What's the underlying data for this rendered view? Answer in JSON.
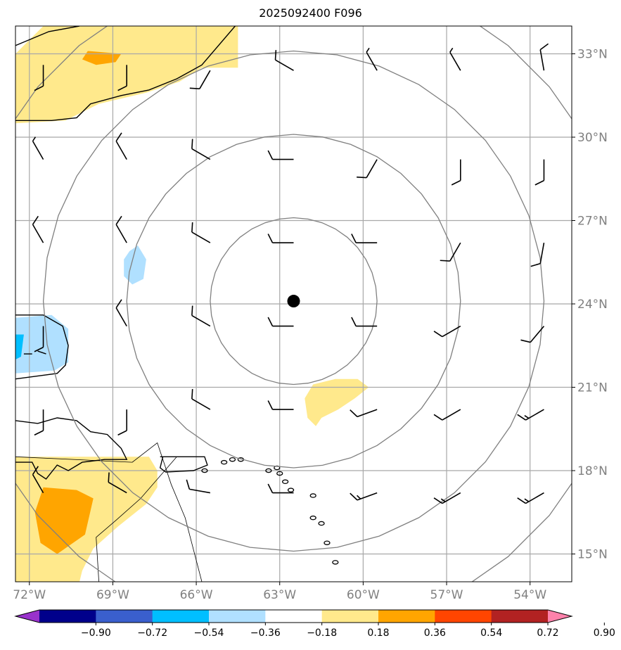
{
  "title": "2025092400 F096",
  "extent": {
    "lon_min": -72.5,
    "lon_max": -52.5,
    "lat_min": 14.0,
    "lat_max": 34.0
  },
  "lon_ticks": [
    {
      "value": -72,
      "label": "72°W"
    },
    {
      "value": -69,
      "label": "69°W"
    },
    {
      "value": -66,
      "label": "66°W"
    },
    {
      "value": -63,
      "label": "63°W"
    },
    {
      "value": -60,
      "label": "60°W"
    },
    {
      "value": -57,
      "label": "57°W"
    },
    {
      "value": -54,
      "label": "54°W"
    }
  ],
  "lat_ticks": [
    {
      "value": 33,
      "label": "33°N"
    },
    {
      "value": 30,
      "label": "30°N"
    },
    {
      "value": 27,
      "label": "27°N"
    },
    {
      "value": 24,
      "label": "24°N"
    },
    {
      "value": 21,
      "label": "21°N"
    },
    {
      "value": 18,
      "label": "18°N"
    },
    {
      "value": 15,
      "label": "15°N"
    }
  ],
  "center": {
    "lon": -62.5,
    "lat": 24.1
  },
  "rings_deg": [
    3,
    6,
    9,
    12
  ],
  "colorbar": {
    "colors": [
      "#9932cc",
      "#00008b",
      "#3a5fcd",
      "#00bfff",
      "#b0e0ff",
      "#ffffff",
      "#ffe98c",
      "#ffa500",
      "#ff4500",
      "#b22222",
      "#ff82ab"
    ],
    "labels": [
      "−0.90",
      "−0.72",
      "−0.54",
      "−0.36",
      "−0.18",
      "0.18",
      "0.36",
      "0.54",
      "0.72",
      "0.90"
    ]
  },
  "anomaly_patches": [
    {
      "color": "#ffe98c",
      "points": [
        [
          -72.5,
          33.0
        ],
        [
          -71.5,
          34.0
        ],
        [
          -64.5,
          34.0
        ],
        [
          -64.5,
          32.5
        ],
        [
          -65.8,
          32.5
        ],
        [
          -66.6,
          32.0
        ],
        [
          -67.8,
          31.6
        ],
        [
          -69.5,
          31.2
        ],
        [
          -70.7,
          30.6
        ],
        [
          -72.5,
          30.5
        ]
      ]
    },
    {
      "color": "#ffa500",
      "points": [
        [
          -69.9,
          33.1
        ],
        [
          -68.7,
          33.0
        ],
        [
          -68.9,
          32.7
        ],
        [
          -69.6,
          32.6
        ],
        [
          -70.1,
          32.8
        ]
      ]
    },
    {
      "color": "#b0e0ff",
      "points": [
        [
          -72.5,
          23.5
        ],
        [
          -71.2,
          23.6
        ],
        [
          -70.6,
          23.1
        ],
        [
          -70.6,
          21.9
        ],
        [
          -71.1,
          21.6
        ],
        [
          -72.5,
          21.5
        ]
      ]
    },
    {
      "color": "#00bfff",
      "points": [
        [
          -72.5,
          22.9
        ],
        [
          -72.2,
          22.9
        ],
        [
          -72.3,
          22.1
        ],
        [
          -72.5,
          22.0
        ]
      ]
    },
    {
      "color": "#b0e0ff",
      "points": [
        [
          -68.4,
          25.9
        ],
        [
          -68.1,
          26.1
        ],
        [
          -67.8,
          25.6
        ],
        [
          -67.9,
          24.9
        ],
        [
          -68.3,
          24.7
        ],
        [
          -68.6,
          25.0
        ],
        [
          -68.6,
          25.6
        ]
      ]
    },
    {
      "color": "#ffe98c",
      "points": [
        [
          -61.0,
          21.3
        ],
        [
          -60.2,
          21.3
        ],
        [
          -59.8,
          21.0
        ],
        [
          -60.3,
          20.6
        ],
        [
          -60.9,
          20.2
        ],
        [
          -61.5,
          19.9
        ],
        [
          -61.7,
          19.6
        ],
        [
          -62.0,
          19.9
        ],
        [
          -62.1,
          20.6
        ],
        [
          -61.8,
          21.1
        ]
      ]
    },
    {
      "color": "#ffe98c",
      "points": [
        [
          -72.5,
          18.5
        ],
        [
          -67.7,
          18.5
        ],
        [
          -67.4,
          18.0
        ],
        [
          -67.4,
          17.4
        ],
        [
          -67.8,
          16.8
        ],
        [
          -68.8,
          16.0
        ],
        [
          -69.7,
          15.2
        ],
        [
          -70.1,
          14.4
        ],
        [
          -70.2,
          14.0
        ],
        [
          -72.5,
          14.0
        ]
      ]
    },
    {
      "color": "#ffa500",
      "points": [
        [
          -71.5,
          17.4
        ],
        [
          -70.3,
          17.3
        ],
        [
          -69.7,
          17.0
        ],
        [
          -70.0,
          15.7
        ],
        [
          -71.0,
          15.0
        ],
        [
          -71.6,
          15.4
        ],
        [
          -71.8,
          16.5
        ]
      ]
    }
  ],
  "coastlines": [
    [
      [
        -72.5,
        23.6
      ],
      [
        -71.5,
        23.6
      ],
      [
        -70.8,
        23.2
      ],
      [
        -70.6,
        22.5
      ],
      [
        -70.7,
        21.8
      ],
      [
        -71.0,
        21.5
      ],
      [
        -72.5,
        21.3
      ]
    ],
    [
      [
        -72.5,
        33.3
      ],
      [
        -71.3,
        33.8
      ],
      [
        -70.2,
        34.0
      ]
    ],
    [
      [
        -72.5,
        30.6
      ],
      [
        -71.2,
        30.6
      ],
      [
        -70.3,
        30.7
      ],
      [
        -69.8,
        31.2
      ],
      [
        -68.7,
        31.5
      ],
      [
        -67.7,
        31.7
      ],
      [
        -66.7,
        32.1
      ],
      [
        -65.8,
        32.6
      ],
      [
        -64.6,
        34.0
      ]
    ],
    [
      [
        -72.5,
        19.8
      ],
      [
        -71.7,
        19.7
      ],
      [
        -71.0,
        19.9
      ],
      [
        -70.3,
        19.8
      ],
      [
        -69.8,
        19.4
      ],
      [
        -69.2,
        19.3
      ],
      [
        -68.7,
        18.8
      ],
      [
        -68.5,
        18.4
      ],
      [
        -69.3,
        18.4
      ],
      [
        -70.1,
        18.3
      ],
      [
        -70.6,
        18.0
      ],
      [
        -71.0,
        18.2
      ],
      [
        -71.4,
        17.7
      ],
      [
        -71.7,
        17.9
      ],
      [
        -71.9,
        18.3
      ],
      [
        -72.5,
        18.3
      ]
    ],
    [
      [
        -67.3,
        18.5
      ],
      [
        -65.7,
        18.5
      ],
      [
        -65.6,
        18.2
      ],
      [
        -66.1,
        18.0
      ],
      [
        -67.1,
        17.95
      ],
      [
        -67.3,
        18.1
      ],
      [
        -67.2,
        18.5
      ]
    ],
    [
      [
        -72.2,
        22.2
      ],
      [
        -71.9,
        22.2
      ]
    ],
    [
      [
        -71.7,
        22.3
      ],
      [
        -71.4,
        22.2
      ]
    ]
  ],
  "islands": [
    [
      -65.0,
      18.3
    ],
    [
      -64.7,
      18.4
    ],
    [
      -64.4,
      18.4
    ],
    [
      -63.1,
      18.1
    ],
    [
      -63.0,
      17.9
    ],
    [
      -62.8,
      17.6
    ],
    [
      -62.6,
      17.3
    ],
    [
      -61.8,
      17.1
    ],
    [
      -61.8,
      16.3
    ],
    [
      -61.5,
      16.1
    ],
    [
      -61.3,
      15.4
    ],
    [
      -61.0,
      14.7
    ],
    [
      -63.4,
      18.0
    ],
    [
      -65.7,
      18.0
    ]
  ],
  "other_lines": [
    [
      [
        -72.5,
        18.5
      ],
      [
        -68.3,
        18.3
      ],
      [
        -67.4,
        19.0
      ],
      [
        -66.9,
        17.5
      ],
      [
        -66.4,
        16.3
      ],
      [
        -65.8,
        14.0
      ]
    ],
    [
      [
        -69.5,
        14.0
      ],
      [
        -69.6,
        15.6
      ],
      [
        -68.9,
        16.2
      ],
      [
        -68.0,
        17.0
      ],
      [
        -66.7,
        18.5
      ]
    ]
  ],
  "wind_barbs": [
    {
      "lon": -71.5,
      "lat": 32.6,
      "dir": 180,
      "spd": 10
    },
    {
      "lon": -68.5,
      "lat": 32.6,
      "dir": 180,
      "spd": 10
    },
    {
      "lon": -65.5,
      "lat": 32.4,
      "dir": 210,
      "spd": 10
    },
    {
      "lon": -62.5,
      "lat": 32.4,
      "dir": 300,
      "spd": 10
    },
    {
      "lon": -59.5,
      "lat": 32.4,
      "dir": 330,
      "spd": 5
    },
    {
      "lon": -56.5,
      "lat": 32.4,
      "dir": 330,
      "spd": 5
    },
    {
      "lon": -53.5,
      "lat": 32.4,
      "dir": 350,
      "spd": 10
    },
    {
      "lon": -71.5,
      "lat": 29.2,
      "dir": 330,
      "spd": 5
    },
    {
      "lon": -68.5,
      "lat": 29.2,
      "dir": 330,
      "spd": 10
    },
    {
      "lon": -65.5,
      "lat": 29.2,
      "dir": 300,
      "spd": 10
    },
    {
      "lon": -62.5,
      "lat": 29.2,
      "dir": 270,
      "spd": 10
    },
    {
      "lon": -59.5,
      "lat": 29.2,
      "dir": 210,
      "spd": 10
    },
    {
      "lon": -56.5,
      "lat": 29.2,
      "dir": 180,
      "spd": 10
    },
    {
      "lon": -53.5,
      "lat": 29.2,
      "dir": 180,
      "spd": 10
    },
    {
      "lon": -71.5,
      "lat": 26.2,
      "dir": 330,
      "spd": 10
    },
    {
      "lon": -68.5,
      "lat": 26.2,
      "dir": 330,
      "spd": 10
    },
    {
      "lon": -65.5,
      "lat": 26.2,
      "dir": 300,
      "spd": 10
    },
    {
      "lon": -62.5,
      "lat": 26.2,
      "dir": 270,
      "spd": 10
    },
    {
      "lon": -59.5,
      "lat": 26.2,
      "dir": 270,
      "spd": 10
    },
    {
      "lon": -56.5,
      "lat": 26.2,
      "dir": 210,
      "spd": 10
    },
    {
      "lon": -53.5,
      "lat": 26.2,
      "dir": 190,
      "spd": 10
    },
    {
      "lon": -71.5,
      "lat": 23.2,
      "dir": 180,
      "spd": 10
    },
    {
      "lon": -68.5,
      "lat": 23.2,
      "dir": 330,
      "spd": 10
    },
    {
      "lon": -65.5,
      "lat": 23.2,
      "dir": 300,
      "spd": 10
    },
    {
      "lon": -62.5,
      "lat": 23.2,
      "dir": 270,
      "spd": 10
    },
    {
      "lon": -59.5,
      "lat": 23.2,
      "dir": 270,
      "spd": 10
    },
    {
      "lon": -56.5,
      "lat": 23.2,
      "dir": 240,
      "spd": 10
    },
    {
      "lon": -53.5,
      "lat": 23.2,
      "dir": 220,
      "spd": 10
    },
    {
      "lon": -71.5,
      "lat": 20.2,
      "dir": 180,
      "spd": 10
    },
    {
      "lon": -68.5,
      "lat": 20.2,
      "dir": 180,
      "spd": 10
    },
    {
      "lon": -65.5,
      "lat": 20.2,
      "dir": 300,
      "spd": 10
    },
    {
      "lon": -62.5,
      "lat": 20.2,
      "dir": 270,
      "spd": 10
    },
    {
      "lon": -59.5,
      "lat": 20.2,
      "dir": 250,
      "spd": 10
    },
    {
      "lon": -56.5,
      "lat": 20.2,
      "dir": 240,
      "spd": 10
    },
    {
      "lon": -53.5,
      "lat": 20.2,
      "dir": 240,
      "spd": 15
    },
    {
      "lon": -71.5,
      "lat": 17.2,
      "dir": 330,
      "spd": 10
    },
    {
      "lon": -68.5,
      "lat": 17.2,
      "dir": 300,
      "spd": 10
    },
    {
      "lon": -65.5,
      "lat": 17.2,
      "dir": 280,
      "spd": 10
    },
    {
      "lon": -62.5,
      "lat": 17.2,
      "dir": 270,
      "spd": 10
    },
    {
      "lon": -59.5,
      "lat": 17.2,
      "dir": 250,
      "spd": 15
    },
    {
      "lon": -56.5,
      "lat": 17.2,
      "dir": 240,
      "spd": 15
    },
    {
      "lon": -53.5,
      "lat": 17.2,
      "dir": 240,
      "spd": 15
    }
  ]
}
